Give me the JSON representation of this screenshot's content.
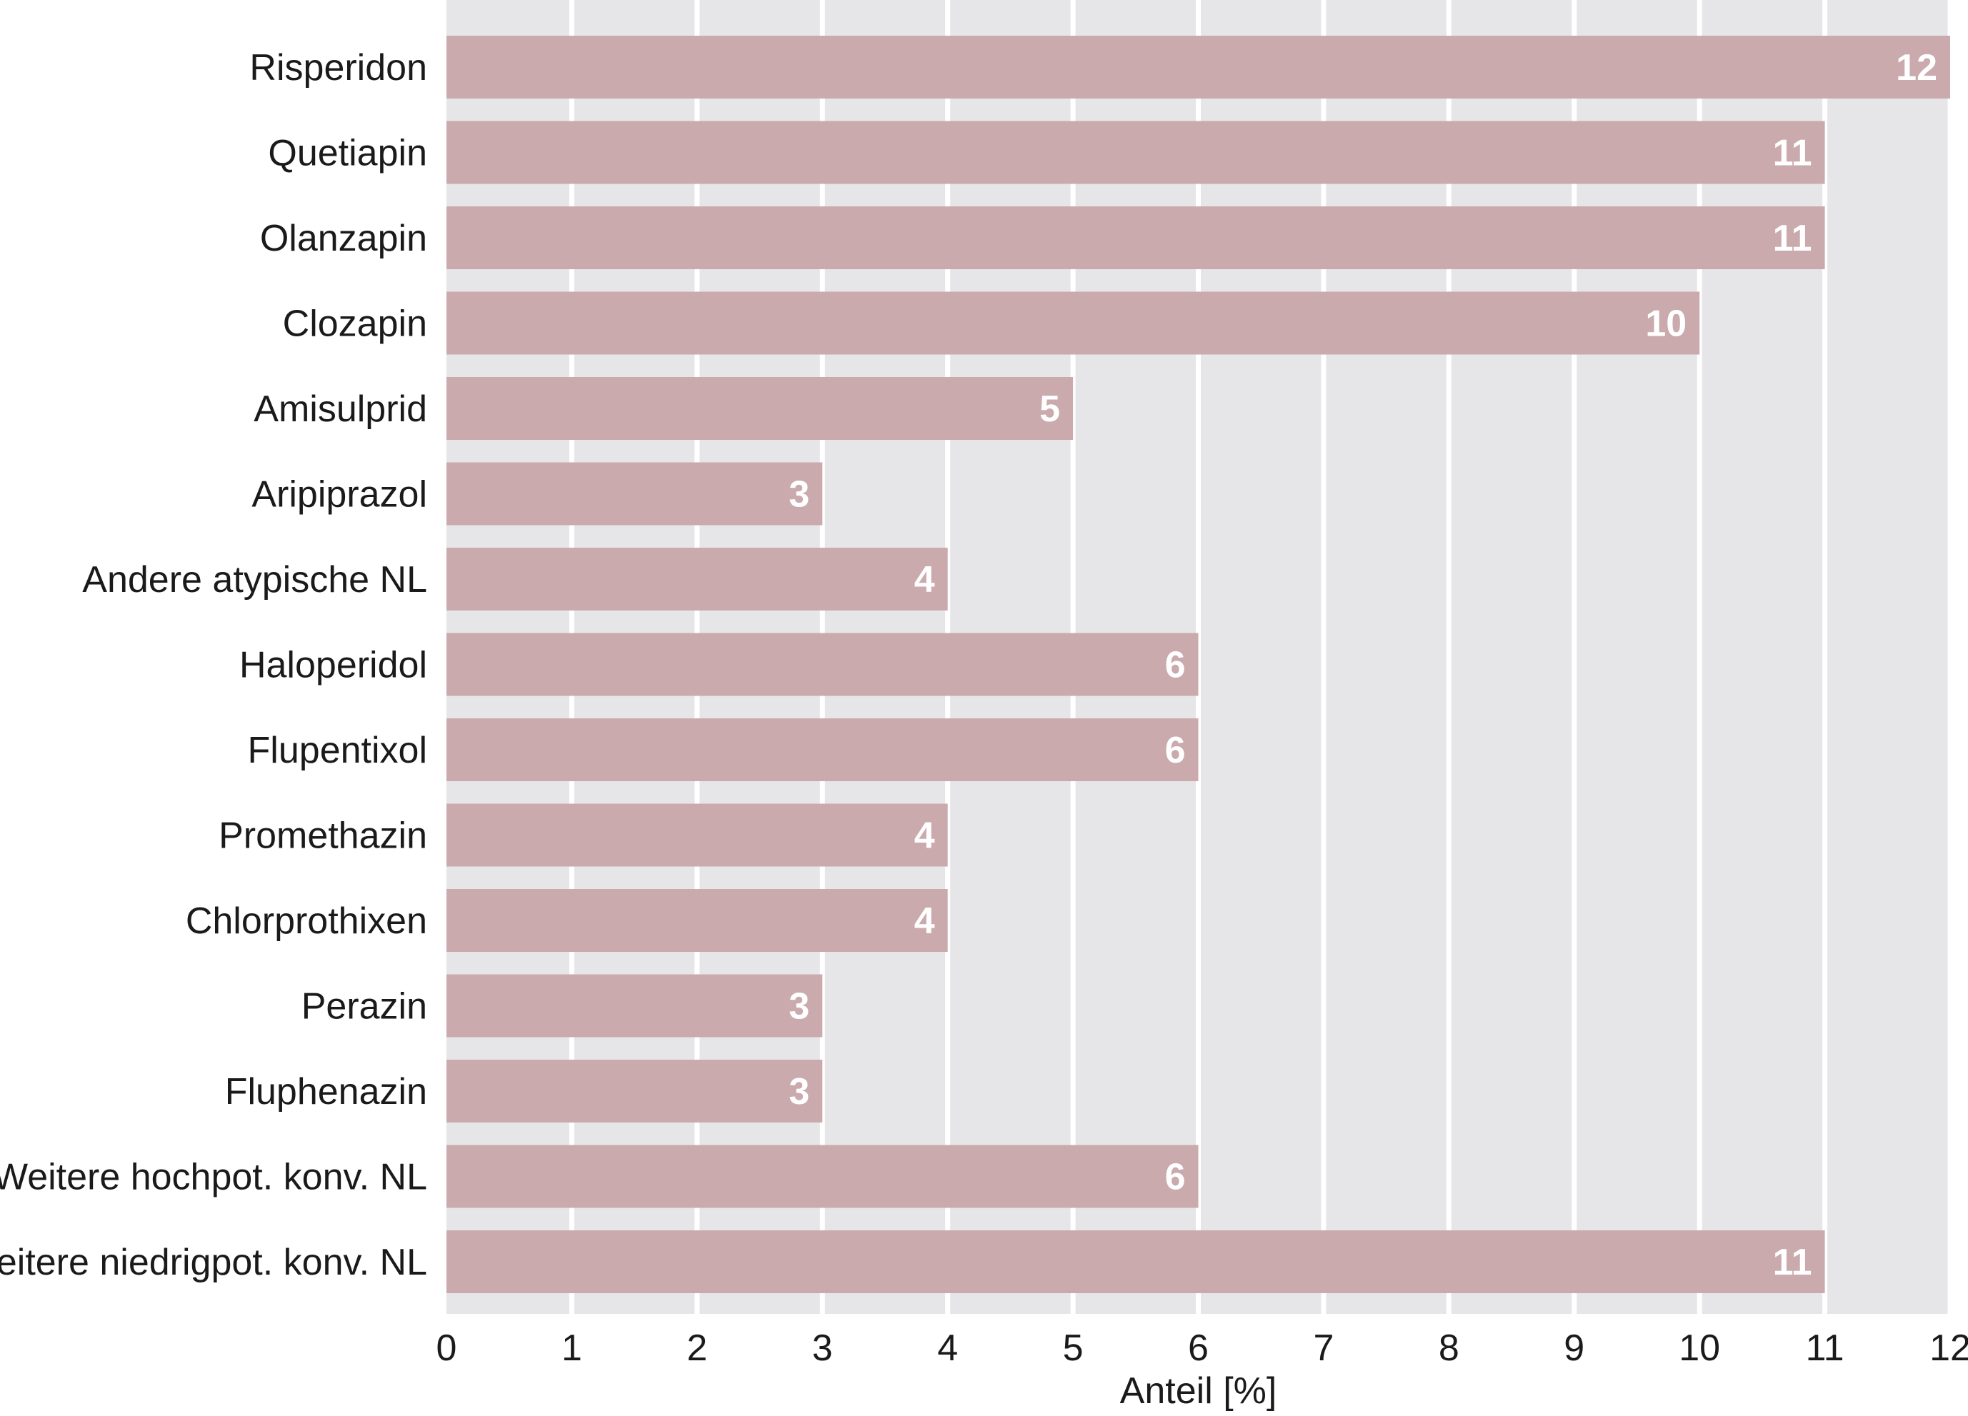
{
  "chart_data": {
    "type": "bar",
    "orientation": "horizontal",
    "categories": [
      "Risperidon",
      "Quetiapin",
      "Olanzapin",
      "Clozapin",
      "Amisulprid",
      "Aripiprazol",
      "Andere atypische NL",
      "Haloperidol",
      "Flupentixol",
      "Promethazin",
      "Chlorprothixen",
      "Perazin",
      "Fluphenazin",
      "Weitere hochpot. konv. NL",
      "Weitere niedrigpot. konv. NL"
    ],
    "values": [
      12,
      11,
      11,
      10,
      5,
      3,
      4,
      6,
      6,
      4,
      4,
      3,
      3,
      6,
      11
    ],
    "data_labels": [
      "12",
      "11",
      "11",
      "10",
      "5",
      "3",
      "4",
      "6",
      "6",
      "4",
      "4",
      "3",
      "3",
      "6",
      "11"
    ],
    "xlabel": "Anteil [%]",
    "ylabel": "",
    "xlim": [
      0,
      12
    ],
    "xticks": [
      "0",
      "1",
      "2",
      "3",
      "4",
      "5",
      "6",
      "7",
      "8",
      "9",
      "10",
      "11",
      "12"
    ],
    "grid": "vertical",
    "colors": {
      "bar": "#caaaad",
      "plot_background": "#e6e6e8",
      "gridline": "#ffffff",
      "value_label": "#ffffff"
    }
  }
}
